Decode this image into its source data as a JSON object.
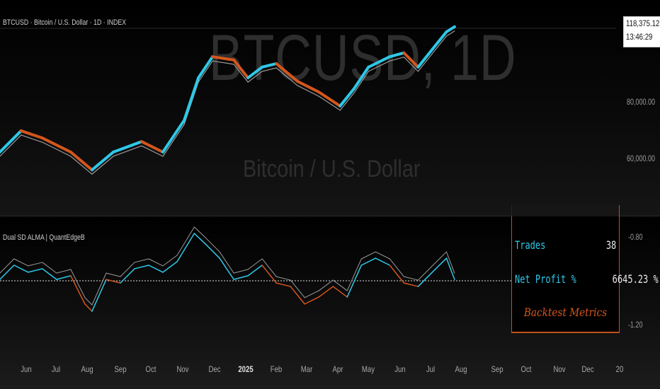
{
  "header": {
    "symbol_legend": "BTCUSD · Bitcoin / U.S. Dollar · 1D · INDEX"
  },
  "watermark": {
    "title": "BTCUSD, 1D",
    "subtitle": "Bitcoin / U.S. Dollar"
  },
  "price_axis": {
    "labels": [
      "80,000.00",
      "60,000.00"
    ],
    "last_price": "118,375.12",
    "countdown": "13:46:29"
  },
  "indicator": {
    "name": "Dual SD ALMA | QuantEdgeB",
    "axis_labels": [
      "-0.80",
      "-1.20"
    ],
    "zero_level": -1.0
  },
  "metrics": {
    "title": "Backtest Metrics",
    "rows": [
      {
        "label": "Trades",
        "value": "38"
      },
      {
        "label": "Net Profit %",
        "value": "6645.23 %"
      }
    ]
  },
  "time_axis": {
    "labels": [
      "Jun",
      "Jul",
      "Aug",
      "Sep",
      "Oct",
      "Nov",
      "Dec",
      "2025",
      "Feb",
      "Mar",
      "Apr",
      "May",
      "Jun",
      "Jul",
      "Aug",
      "Sep",
      "Oct",
      "Nov",
      "Dec",
      "20"
    ]
  },
  "colors": {
    "up": "#2ec8e8",
    "down": "#d4561c",
    "secondary": "#9a9a9a"
  },
  "price_series": [
    [
      "2024-05-06",
      62200
    ],
    [
      "2024-05-27",
      69300
    ],
    [
      "2024-06-17",
      66800
    ],
    [
      "2024-07-15",
      62200
    ],
    [
      "2024-08-05",
      56800
    ],
    [
      "2024-08-26",
      62200
    ],
    [
      "2024-09-23",
      65600
    ],
    [
      "2024-10-14",
      62200
    ],
    [
      "2024-11-04",
      73100
    ],
    [
      "2024-11-18",
      90700
    ],
    [
      "2024-12-02",
      101000
    ],
    [
      "2024-12-23",
      99300
    ],
    [
      "2025-01-06",
      90700
    ],
    [
      "2025-01-20",
      95800
    ],
    [
      "2025-02-03",
      97500
    ],
    [
      "2025-02-24",
      89100
    ],
    [
      "2025-03-17",
      84400
    ],
    [
      "2025-04-07",
      78600
    ],
    [
      "2025-04-21",
      86000
    ],
    [
      "2025-05-05",
      95800
    ],
    [
      "2025-05-26",
      101000
    ],
    [
      "2025-06-09",
      103000
    ],
    [
      "2025-06-23",
      95800
    ],
    [
      "2025-07-07",
      104800
    ],
    [
      "2025-07-21",
      114600
    ],
    [
      "2025-07-29",
      117600
    ]
  ],
  "oscillator_series": [
    [
      "2024-05-06",
      -0.994
    ],
    [
      "2024-05-20",
      -0.929
    ],
    [
      "2024-06-03",
      -0.961
    ],
    [
      "2024-06-17",
      -0.945
    ],
    [
      "2024-07-01",
      -0.994
    ],
    [
      "2024-07-15",
      -0.977
    ],
    [
      "2024-07-29",
      -1.106
    ],
    [
      "2024-08-05",
      -1.139
    ],
    [
      "2024-08-19",
      -0.994
    ],
    [
      "2024-09-02",
      -1.01
    ],
    [
      "2024-09-16",
      -0.945
    ],
    [
      "2024-09-30",
      -0.929
    ],
    [
      "2024-10-14",
      -0.961
    ],
    [
      "2024-10-28",
      -0.913
    ],
    [
      "2024-11-14",
      -0.784
    ],
    [
      "2024-11-25",
      -0.832
    ],
    [
      "2024-12-09",
      -0.897
    ],
    [
      "2024-12-23",
      -0.994
    ],
    [
      "2025-01-06",
      -0.977
    ],
    [
      "2025-01-20",
      -0.929
    ],
    [
      "2025-02-03",
      -1.01
    ],
    [
      "2025-02-17",
      -1.026
    ],
    [
      "2025-03-03",
      -1.106
    ],
    [
      "2025-03-17",
      -1.074
    ],
    [
      "2025-03-31",
      -1.026
    ],
    [
      "2025-04-14",
      -1.074
    ],
    [
      "2025-04-28",
      -0.929
    ],
    [
      "2025-05-12",
      -0.897
    ],
    [
      "2025-05-26",
      -0.929
    ],
    [
      "2025-06-09",
      -1.01
    ],
    [
      "2025-06-23",
      -1.026
    ],
    [
      "2025-07-07",
      -0.961
    ],
    [
      "2025-07-21",
      -0.897
    ],
    [
      "2025-07-29",
      -0.994
    ]
  ]
}
